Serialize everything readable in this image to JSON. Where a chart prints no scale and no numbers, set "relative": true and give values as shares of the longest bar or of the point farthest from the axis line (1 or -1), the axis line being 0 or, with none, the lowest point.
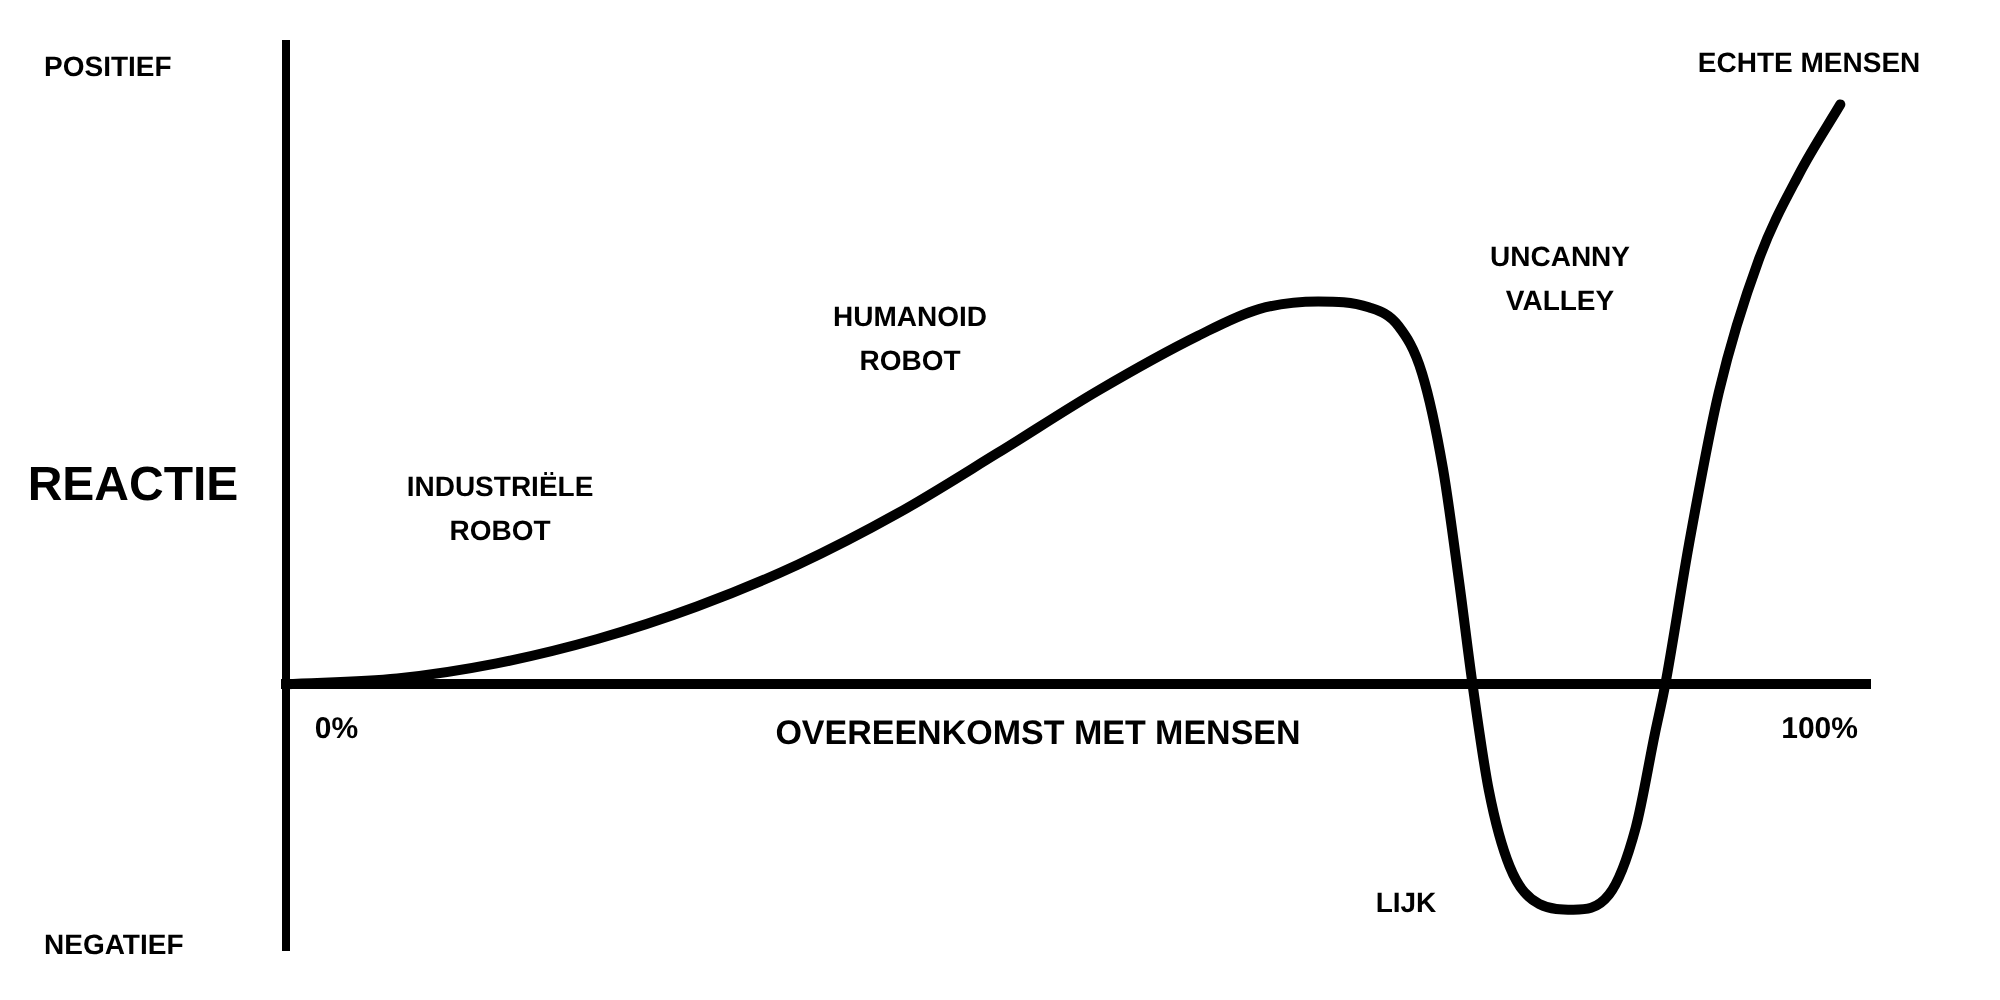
{
  "chart_data": {
    "type": "line",
    "relative": true,
    "xlabel": "OVEREENKOMST MET MENSEN",
    "ylabel": "REACTIE",
    "xlim": [
      -3.4,
      103.4
    ],
    "xticks": [
      {
        "value": 0,
        "label": "0%"
      },
      {
        "value": 100,
        "label": "100%"
      }
    ],
    "grid": false,
    "legend": false,
    "marker": "none",
    "line_style": "solid",
    "series": [
      {
        "color": "#000000",
        "x": [
          -3.4,
          4.1,
          10.8,
          17.6,
          24.3,
          31.1,
          37.8,
          44.6,
          51.4,
          58.1,
          62.2,
          66.2,
          69.6,
          71.6,
          73.2,
          74.6,
          75.7,
          76.6,
          77.7,
          79.1,
          81.1,
          83.4,
          85.8,
          87.6,
          88.9,
          89.6,
          91.2,
          93.2,
          95.9,
          98.6,
          101.4
        ],
        "values": [
          0,
          0.01,
          0.036,
          0.078,
          0.134,
          0.206,
          0.294,
          0.399,
          0.507,
          0.601,
          0.647,
          0.66,
          0.65,
          0.618,
          0.536,
          0.373,
          0.176,
          0,
          -0.183,
          -0.314,
          -0.379,
          -0.389,
          -0.363,
          -0.248,
          -0.085,
          0,
          0.242,
          0.503,
          0.732,
          0.879,
          1
        ]
      }
    ],
    "annotations": [
      "POSITIEF",
      "NEGATIEF",
      "INDUSTRIËLE\nROBOT",
      "HUMANOID\nROBOT",
      "UNCANNY\nVALLEY",
      "LIJK",
      {
        "text": "ECHTE MENSEN",
        "x": 101.4,
        "y": 1
      }
    ]
  }
}
